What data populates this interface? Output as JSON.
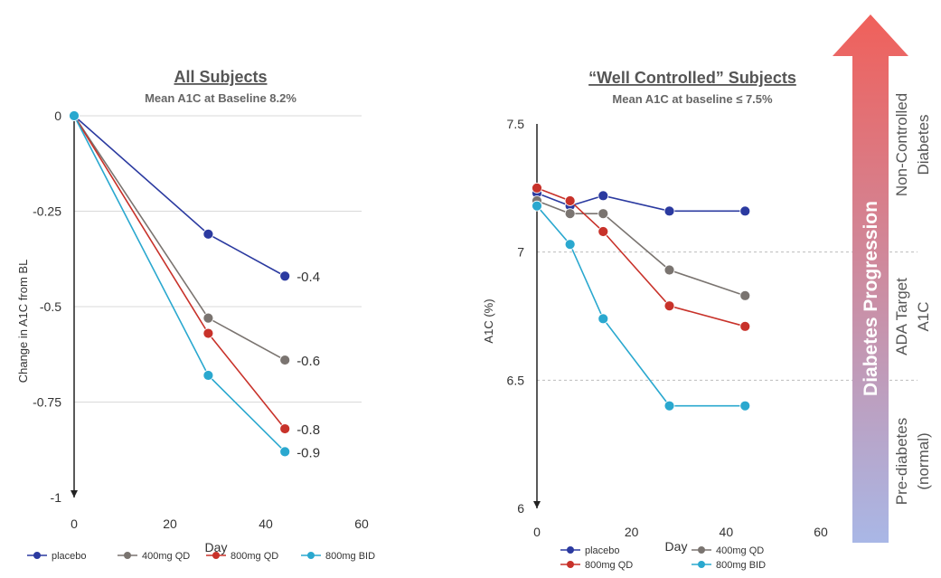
{
  "colors": {
    "placebo": "#2b3aa0",
    "400mg QD": "#7a7470",
    "800mg QD": "#c8322a",
    "800mg BID": "#2aa8cf",
    "arrow_top": "#f0605a",
    "arrow_bottom": "#a9b7e6"
  },
  "chart_data": [
    {
      "type": "line",
      "title": "All Subjects",
      "subtitle": "Mean A1C at Baseline 8.2%",
      "xlabel": "Day",
      "ylabel": "Change in A1C from BL",
      "xlim": [
        0,
        60
      ],
      "ylim": [
        -1,
        0
      ],
      "xticks": [
        "0",
        "20",
        "40",
        "60"
      ],
      "yticks": [
        "0",
        "-0.25",
        "-0.5",
        "-0.75",
        "-1"
      ],
      "grid": "horizontal",
      "legend": "bottom",
      "series": [
        {
          "name": "placebo",
          "x": [
            0,
            28,
            44
          ],
          "y": [
            0,
            -0.31,
            -0.42
          ],
          "end_label": "-0.4"
        },
        {
          "name": "400mg QD",
          "x": [
            0,
            28,
            44
          ],
          "y": [
            0,
            -0.53,
            -0.64
          ],
          "end_label": "-0.6"
        },
        {
          "name": "800mg QD",
          "x": [
            0,
            28,
            44
          ],
          "y": [
            0,
            -0.57,
            -0.82
          ],
          "end_label": "-0.8"
        },
        {
          "name": "800mg BID",
          "x": [
            0,
            28,
            44
          ],
          "y": [
            0,
            -0.68,
            -0.88
          ],
          "end_label": "-0.9"
        }
      ]
    },
    {
      "type": "line",
      "title": "“Well Controlled” Subjects",
      "subtitle": "Mean A1C at baseline ≤ 7.5%",
      "xlabel": "Day",
      "ylabel": "A1C (%)",
      "xlim": [
        0,
        60
      ],
      "ylim": [
        6,
        7.5
      ],
      "xticks": [
        "0",
        "20",
        "40",
        "60"
      ],
      "yticks": [
        "7.5",
        "7",
        "6.5",
        "6"
      ],
      "reference_lines": [
        7,
        6.5
      ],
      "legend": "bottom",
      "series": [
        {
          "name": "placebo",
          "x": [
            0,
            7,
            14,
            28,
            44
          ],
          "y": [
            7.23,
            7.18,
            7.22,
            7.16,
            7.16
          ]
        },
        {
          "name": "400mg QD",
          "x": [
            0,
            7,
            14,
            28,
            44
          ],
          "y": [
            7.2,
            7.15,
            7.15,
            6.93,
            6.83
          ]
        },
        {
          "name": "800mg QD",
          "x": [
            0,
            7,
            14,
            28,
            44
          ],
          "y": [
            7.25,
            7.2,
            7.08,
            6.79,
            6.71
          ]
        },
        {
          "name": "800mg BID",
          "x": [
            0,
            7,
            14,
            28,
            44
          ],
          "y": [
            7.18,
            7.03,
            6.74,
            6.4,
            6.4
          ]
        }
      ]
    }
  ],
  "progression": {
    "label": "Diabetes Progression",
    "zones": [
      {
        "lines": [
          "Non-Controlled",
          "Diabetes"
        ]
      },
      {
        "lines": [
          "ADA Target",
          "A1C"
        ]
      },
      {
        "lines": [
          "Pre-diabetes",
          "(normal)"
        ]
      }
    ]
  }
}
